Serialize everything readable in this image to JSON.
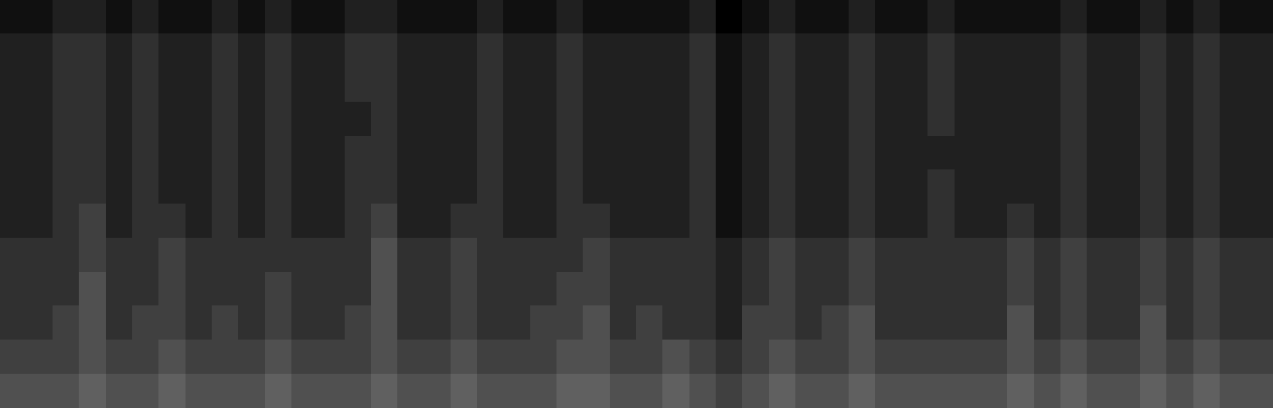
{
  "chart_data": {
    "type": "heatmap",
    "tick_labels": false,
    "color": "#ffffff",
    "zlim": [
      0,
      16
    ],
    "cells": [
      [
        1,
        1,
        2,
        2,
        1,
        2,
        1,
        1,
        2,
        1,
        2,
        1,
        1,
        2,
        2,
        1,
        1,
        1,
        2,
        1,
        1,
        2,
        1,
        1,
        1,
        1,
        2,
        0,
        1,
        2,
        1,
        1,
        2,
        1,
        1,
        2,
        1,
        1,
        1,
        1,
        2,
        1,
        1,
        2,
        1,
        2,
        1,
        1
      ],
      [
        2,
        2,
        3,
        3,
        2,
        3,
        2,
        2,
        3,
        2,
        3,
        2,
        2,
        3,
        3,
        2,
        2,
        2,
        3,
        2,
        2,
        3,
        2,
        2,
        2,
        2,
        3,
        1,
        2,
        3,
        2,
        2,
        3,
        2,
        2,
        3,
        2,
        2,
        2,
        2,
        3,
        2,
        2,
        3,
        2,
        3,
        2,
        2
      ],
      [
        2,
        2,
        3,
        3,
        2,
        3,
        2,
        2,
        3,
        2,
        3,
        2,
        2,
        3,
        3,
        2,
        2,
        2,
        3,
        2,
        2,
        3,
        2,
        2,
        2,
        2,
        3,
        1,
        2,
        3,
        2,
        2,
        3,
        2,
        2,
        3,
        2,
        2,
        2,
        2,
        3,
        2,
        2,
        3,
        2,
        3,
        2,
        2
      ],
      [
        2,
        2,
        3,
        3,
        2,
        3,
        2,
        2,
        3,
        2,
        3,
        2,
        2,
        2,
        3,
        2,
        2,
        2,
        3,
        2,
        2,
        3,
        2,
        2,
        2,
        2,
        3,
        1,
        2,
        3,
        2,
        2,
        3,
        2,
        2,
        3,
        2,
        2,
        2,
        2,
        3,
        2,
        2,
        3,
        2,
        3,
        2,
        2
      ],
      [
        2,
        2,
        3,
        3,
        2,
        3,
        2,
        2,
        3,
        2,
        3,
        2,
        2,
        3,
        3,
        2,
        2,
        2,
        3,
        2,
        2,
        3,
        2,
        2,
        2,
        2,
        3,
        1,
        2,
        3,
        2,
        2,
        3,
        2,
        2,
        2,
        2,
        2,
        2,
        2,
        3,
        2,
        2,
        3,
        2,
        3,
        2,
        2
      ],
      [
        2,
        2,
        3,
        3,
        2,
        3,
        2,
        2,
        3,
        2,
        3,
        2,
        2,
        3,
        3,
        2,
        2,
        2,
        3,
        2,
        2,
        3,
        2,
        2,
        2,
        2,
        3,
        1,
        2,
        3,
        2,
        2,
        3,
        2,
        2,
        3,
        2,
        2,
        2,
        2,
        3,
        2,
        2,
        3,
        2,
        3,
        2,
        2
      ],
      [
        2,
        2,
        3,
        4,
        2,
        3,
        3,
        2,
        3,
        2,
        3,
        2,
        2,
        3,
        4,
        2,
        2,
        3,
        3,
        2,
        2,
        3,
        3,
        2,
        2,
        2,
        3,
        1,
        2,
        3,
        2,
        2,
        3,
        2,
        2,
        3,
        2,
        2,
        3,
        2,
        3,
        2,
        2,
        3,
        2,
        3,
        2,
        2
      ],
      [
        3,
        3,
        3,
        4,
        3,
        3,
        4,
        3,
        3,
        3,
        3,
        3,
        3,
        3,
        5,
        3,
        3,
        4,
        3,
        3,
        3,
        3,
        4,
        3,
        3,
        3,
        3,
        2,
        3,
        4,
        3,
        3,
        4,
        3,
        3,
        3,
        3,
        3,
        4,
        3,
        4,
        3,
        3,
        4,
        3,
        4,
        3,
        3
      ],
      [
        3,
        3,
        3,
        5,
        3,
        3,
        4,
        3,
        3,
        3,
        4,
        3,
        3,
        3,
        5,
        3,
        3,
        4,
        3,
        3,
        3,
        4,
        4,
        3,
        3,
        3,
        3,
        2,
        3,
        4,
        3,
        3,
        4,
        3,
        3,
        3,
        3,
        3,
        4,
        3,
        4,
        3,
        3,
        4,
        3,
        4,
        3,
        3
      ],
      [
        3,
        3,
        4,
        5,
        3,
        4,
        4,
        3,
        4,
        3,
        4,
        3,
        3,
        4,
        5,
        3,
        3,
        4,
        3,
        3,
        4,
        4,
        5,
        3,
        4,
        3,
        3,
        2,
        4,
        4,
        3,
        4,
        5,
        3,
        3,
        3,
        3,
        3,
        5,
        3,
        4,
        3,
        3,
        5,
        3,
        4,
        3,
        3
      ],
      [
        4,
        4,
        4,
        5,
        4,
        4,
        5,
        4,
        4,
        4,
        5,
        4,
        4,
        4,
        5,
        4,
        4,
        5,
        4,
        4,
        4,
        5,
        5,
        4,
        4,
        5,
        4,
        3,
        4,
        5,
        4,
        4,
        5,
        4,
        4,
        4,
        4,
        4,
        5,
        4,
        5,
        4,
        4,
        5,
        4,
        5,
        4,
        4
      ],
      [
        5,
        5,
        5,
        6,
        5,
        5,
        6,
        5,
        5,
        5,
        6,
        5,
        5,
        5,
        6,
        5,
        5,
        6,
        5,
        5,
        5,
        6,
        6,
        5,
        5,
        6,
        5,
        4,
        5,
        6,
        5,
        5,
        6,
        5,
        5,
        5,
        5,
        5,
        6,
        5,
        6,
        5,
        5,
        6,
        5,
        6,
        5,
        5
      ]
    ]
  }
}
